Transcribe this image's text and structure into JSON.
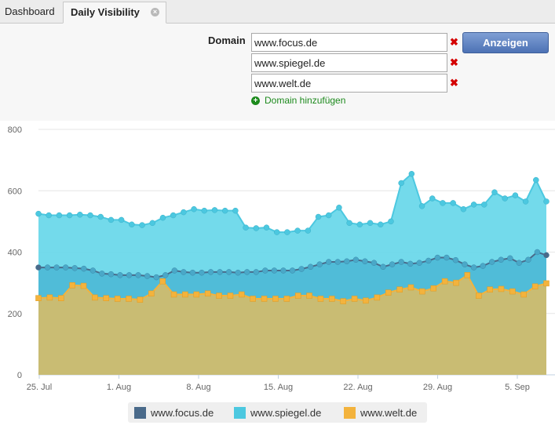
{
  "tabs": [
    {
      "label": "Dashboard"
    },
    {
      "label": "Daily Visibility",
      "close_icon": "close-icon"
    }
  ],
  "form": {
    "domain_label": "Domain",
    "domains": [
      "www.focus.de",
      "www.spiegel.de",
      "www.welt.de"
    ],
    "remove_icon": "red-x-icon",
    "submit_label": "Anzeigen",
    "add_domain_label": "Domain hinzufügen",
    "add_icon": "plus-circle-icon"
  },
  "colors": {
    "focus": "#4a6a8a",
    "spiegel": "#4cc8e0",
    "welt": "#f3b33d",
    "button": "#5b7fc0",
    "remove": "#d40000",
    "add": "#1d8a1d"
  },
  "chart_data": {
    "type": "area",
    "stacked": false,
    "x_tick_labels": [
      "25. Jul",
      "1. Aug",
      "8. Aug",
      "15. Aug",
      "22. Aug",
      "29. Aug",
      "5. Sep"
    ],
    "y_tick_labels": [
      "0",
      "200",
      "400",
      "600",
      "800"
    ],
    "ylim": [
      0,
      800
    ],
    "x_start": "25. Jul",
    "x_end": "9. Sep",
    "grid": true,
    "legend_position": "bottom",
    "series": [
      {
        "name": "www.focus.de",
        "color": "#4a6a8a",
        "values": [
          350,
          350,
          350,
          350,
          348,
          346,
          340,
          330,
          328,
          325,
          325,
          325,
          322,
          318,
          325,
          340,
          335,
          333,
          333,
          335,
          335,
          335,
          333,
          335,
          335,
          340,
          340,
          340,
          340,
          345,
          352,
          360,
          368,
          368,
          370,
          375,
          370,
          365,
          352,
          360,
          368,
          362,
          365,
          372,
          382,
          382,
          374,
          360,
          350,
          355,
          368,
          375,
          380,
          365,
          375,
          400,
          390
        ]
      },
      {
        "name": "www.spiegel.de",
        "color": "#4cc8e0",
        "values": [
          525,
          520,
          520,
          520,
          522,
          520,
          515,
          505,
          505,
          490,
          488,
          495,
          512,
          520,
          530,
          540,
          535,
          537,
          535,
          535,
          480,
          478,
          480,
          465,
          465,
          470,
          470,
          515,
          520,
          545,
          495,
          490,
          495,
          490,
          500,
          625,
          655,
          550,
          575,
          560,
          560,
          540,
          555,
          555,
          595,
          575,
          585,
          565,
          635,
          565
        ]
      },
      {
        "name": "www.welt.de",
        "color": "#f3b33d",
        "values": [
          250,
          252,
          250,
          292,
          290,
          252,
          250,
          248,
          248,
          245,
          265,
          305,
          262,
          262,
          262,
          265,
          258,
          258,
          262,
          248,
          248,
          248,
          248,
          258,
          258,
          248,
          248,
          240,
          248,
          242,
          252,
          268,
          278,
          285,
          272,
          282,
          305,
          300,
          325,
          258,
          278,
          280,
          272,
          262,
          288,
          298
        ]
      }
    ]
  }
}
